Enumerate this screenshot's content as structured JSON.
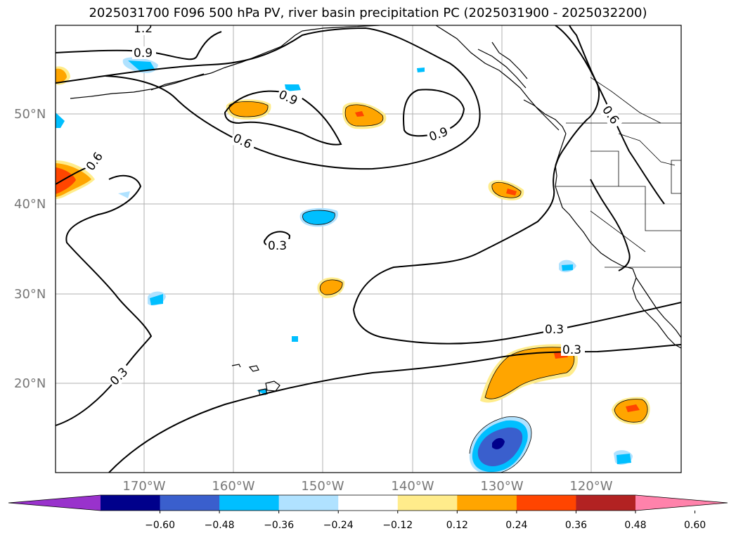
{
  "title": "2025031700 F096 500 hPa PV, river basin precipitation PC (2025031900 - 2025032200)",
  "lat_labels": [
    "50°N",
    "40°N",
    "30°N",
    "20°N"
  ],
  "lon_labels": [
    "170°W",
    "160°W",
    "150°W",
    "140°W",
    "130°W",
    "120°W"
  ],
  "contour_labels": [
    "1.2",
    "0.9",
    "0.9",
    "0.9",
    "0.6",
    "0.6",
    "0.6",
    "0.3",
    "0.3",
    "0.3",
    "0.3"
  ],
  "colorbar": {
    "colors": [
      "#9932cc",
      "#00008b",
      "#3a5fcd",
      "#00bfff",
      "#b0e2ff",
      "#ffffff",
      "#ffec8b",
      "#ffa500",
      "#ff4500",
      "#b22222",
      "#ff82ab"
    ],
    "labels": [
      "−0.60",
      "−0.48",
      "−0.36",
      "−0.24",
      "−0.12",
      "0.12",
      "0.24",
      "0.36",
      "0.48",
      "0.60"
    ]
  }
}
